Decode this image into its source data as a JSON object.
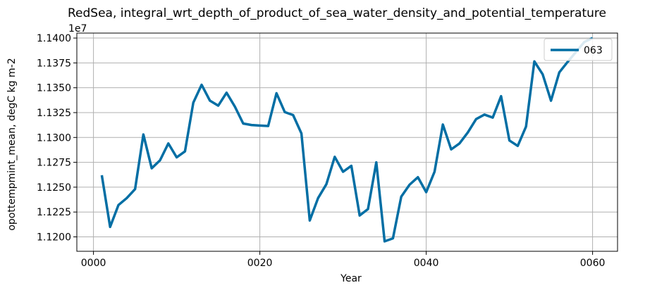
{
  "chart_data": {
    "type": "line",
    "title": "RedSea, integral_wrt_depth_of_product_of_sea_water_density_and_potential_temperature",
    "xlabel": "Year",
    "ylabel": "opottempmint_mean, degC kg m-2",
    "y_offset_text": "1e7",
    "xlim": [
      -2,
      63
    ],
    "ylim": [
      11185500,
      11405000
    ],
    "x_ticks": [
      0,
      20,
      40,
      60
    ],
    "x_tick_labels": [
      "0000",
      "0020",
      "0040",
      "0060"
    ],
    "y_ticks": [
      11200000,
      11225000,
      11250000,
      11275000,
      11300000,
      11325000,
      11350000,
      11375000,
      11400000
    ],
    "y_tick_labels": [
      "1.1200",
      "1.1225",
      "1.1250",
      "1.1275",
      "1.1300",
      "1.1325",
      "1.1350",
      "1.1375",
      "1.1400"
    ],
    "grid": true,
    "legend_position": "top-right",
    "series": [
      {
        "name": "063",
        "color": "#016ea4",
        "x": [
          1,
          2,
          3,
          4,
          5,
          6,
          7,
          8,
          9,
          10,
          11,
          12,
          13,
          14,
          15,
          16,
          17,
          18,
          19,
          20,
          21,
          22,
          23,
          24,
          25,
          26,
          27,
          28,
          29,
          30,
          31,
          32,
          33,
          34,
          35,
          36,
          37,
          38,
          39,
          40,
          41,
          42,
          43,
          44,
          45,
          46,
          47,
          48,
          49,
          50,
          51,
          52,
          53,
          54,
          55,
          56,
          57,
          58,
          59,
          60
        ],
        "values": [
          11262000,
          11210000,
          11232000,
          11239000,
          11248000,
          11303000,
          11269000,
          11277000,
          11294000,
          11280000,
          11286000,
          11335000,
          11353000,
          11337000,
          11332000,
          11345000,
          11331000,
          11314000,
          11312500,
          11312000,
          11311500,
          11344500,
          11325500,
          11322500,
          11304000,
          11216500,
          11239000,
          11253000,
          11280500,
          11265500,
          11271500,
          11221500,
          11228000,
          11275000,
          11195500,
          11198500,
          11240500,
          11252500,
          11260000,
          11245000,
          11265500,
          11313000,
          11288000,
          11294000,
          11305000,
          11318500,
          11323000,
          11320000,
          11341500,
          11297000,
          11291500,
          11311000,
          11376500,
          11363500,
          11337000,
          11365500,
          11376000,
          11386000,
          11396000,
          11400000
        ]
      }
    ]
  }
}
